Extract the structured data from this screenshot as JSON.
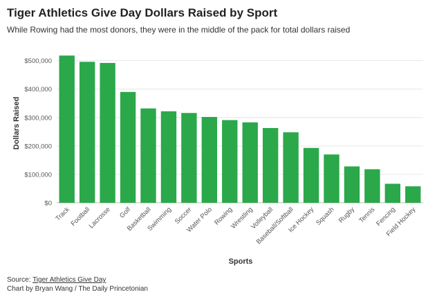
{
  "header": {
    "title": "Tiger Athletics Give Day Dollars Raised by Sport",
    "subtitle": "While Rowing had the most donors, they were in the middle of the pack for total dollars raised"
  },
  "chart_data": {
    "type": "bar",
    "title": "Tiger Athletics Give Day Dollars Raised by Sport",
    "subtitle": "While Rowing had the most donors, they were in the middle of the pack for total dollars raised",
    "xlabel": "Sports",
    "ylabel": "Dollars Raised",
    "ylim": [
      0,
      500000
    ],
    "yticks": [
      0,
      100000,
      200000,
      300000,
      400000,
      500000
    ],
    "ytick_labels": [
      "$0",
      "$100,000",
      "$200,000",
      "$300,000",
      "$400,000",
      "$500,000"
    ],
    "grid": true,
    "bar_color": "#2ba84a",
    "categories": [
      "Track",
      "Football",
      "Lacrosse",
      "Golf",
      "Basketball",
      "Swimming",
      "Soccer",
      "Water Polo",
      "Rowing",
      "Wrestling",
      "Volleyball",
      "Baseball/Softball",
      "Ice Hockey",
      "Squash",
      "Rugby",
      "Tennis",
      "Fencing",
      "Field Hockey"
    ],
    "values": [
      518000,
      496000,
      492000,
      390000,
      332000,
      322000,
      316000,
      302000,
      291000,
      283000,
      263000,
      248000,
      193000,
      170000,
      128000,
      118000,
      67000,
      58000
    ]
  },
  "footer": {
    "source_label": "Source: ",
    "source_link": "Tiger Athletics Give Day",
    "credit": "Chart by Bryan Wang / The Daily Princetonian"
  }
}
